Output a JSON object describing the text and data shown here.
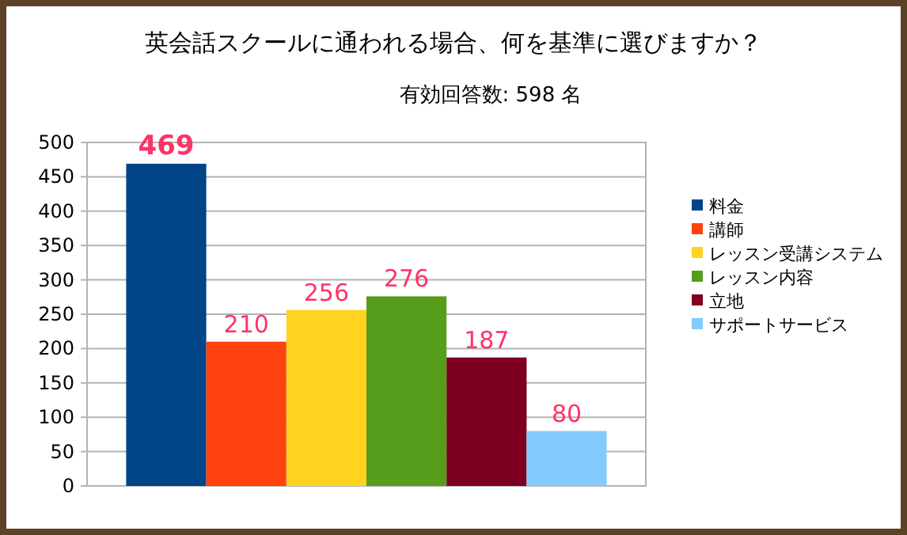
{
  "chart_data": {
    "type": "bar",
    "title": "英会話スクールに通われる場合、何を基準に選びますか？",
    "subtitle": "有効回答数: 598 名",
    "categories": [
      null
    ],
    "series": [
      {
        "name": "料金",
        "color": "#004586",
        "values": [
          469
        ]
      },
      {
        "name": "講師",
        "color": "#ff420e",
        "values": [
          210
        ]
      },
      {
        "name": "レッスン受講システム",
        "color": "#ffd320",
        "values": [
          256
        ]
      },
      {
        "name": "レッスン内容",
        "color": "#579d1c",
        "values": [
          276
        ]
      },
      {
        "name": "立地",
        "color": "#7e0021",
        "values": [
          187
        ]
      },
      {
        "name": "サポートサービス",
        "color": "#83caff",
        "values": [
          80
        ]
      }
    ],
    "ylim": [
      0,
      500
    ],
    "yticks": [
      0,
      50,
      100,
      150,
      200,
      250,
      300,
      350,
      400,
      450,
      500
    ],
    "grid": "y",
    "legend": "right",
    "data_labels": true
  }
}
